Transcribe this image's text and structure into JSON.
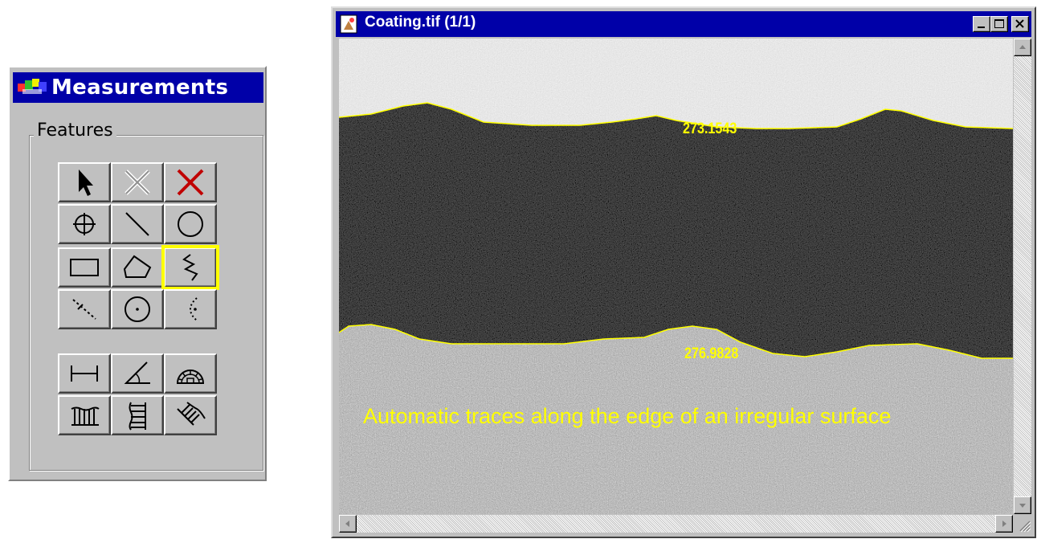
{
  "palette": {
    "title": "Measurements",
    "group_label": "Features",
    "tools": [
      {
        "name": "select-arrow-icon",
        "selected": false
      },
      {
        "name": "delete-feature-icon",
        "selected": false
      },
      {
        "name": "delete-all-icon",
        "selected": false
      },
      {
        "name": "point-crosshair-icon",
        "selected": false
      },
      {
        "name": "line-icon",
        "selected": false
      },
      {
        "name": "circle-icon",
        "selected": false
      },
      {
        "name": "rectangle-icon",
        "selected": false
      },
      {
        "name": "polygon-icon",
        "selected": false
      },
      {
        "name": "trace-line-icon",
        "selected": true
      },
      {
        "name": "dashed-line-icon",
        "selected": false
      },
      {
        "name": "dotted-circle-icon",
        "selected": false
      },
      {
        "name": "dotted-arc-icon",
        "selected": false
      },
      {
        "name": "caliper-distance-icon",
        "selected": false
      },
      {
        "name": "angle-icon",
        "selected": false
      },
      {
        "name": "protractor-icon",
        "selected": false
      },
      {
        "name": "horizontal-thickness-icon",
        "selected": false
      },
      {
        "name": "vertical-thickness-icon",
        "selected": false
      },
      {
        "name": "diagonal-thickness-icon",
        "selected": false
      }
    ]
  },
  "window": {
    "title": "Coating.tif (1/1)",
    "top_measurement": "273.1543",
    "bottom_measurement": "276.9828",
    "caption": "Automatic traces along the edge of an irregular surface",
    "trace_color": "#ffff00",
    "titlebar_color": "#0000a8"
  }
}
